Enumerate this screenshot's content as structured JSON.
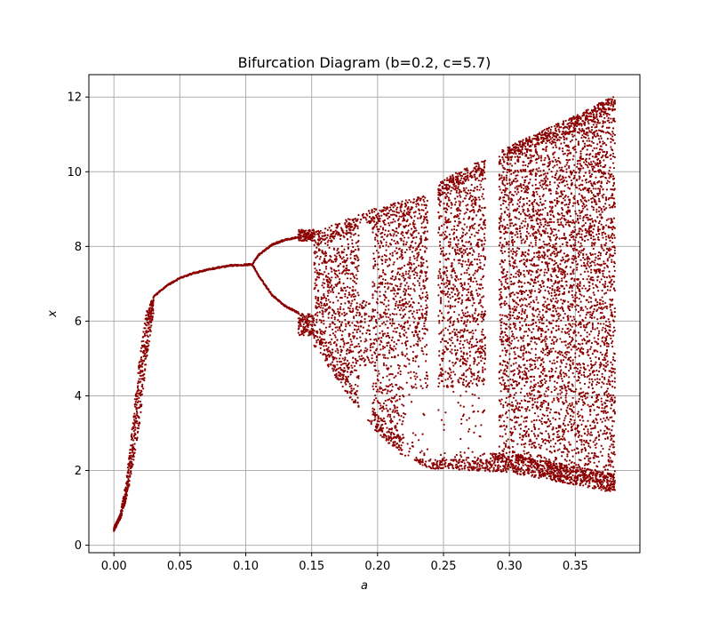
{
  "chart_data": {
    "type": "scatter",
    "title": "Bifurcation Diagram (b=0.2, c=5.7)",
    "xlabel": "a",
    "ylabel": "x",
    "xlim": [
      -0.019,
      0.399
    ],
    "ylim": [
      -0.2,
      12.6
    ],
    "xticks": [
      0.0,
      0.05,
      0.1,
      0.15,
      0.2,
      0.25,
      0.3,
      0.35
    ],
    "xtick_labels": [
      "0.00",
      "0.05",
      "0.10",
      "0.15",
      "0.20",
      "0.25",
      "0.30",
      "0.35"
    ],
    "yticks": [
      0,
      2,
      4,
      6,
      8,
      10,
      12
    ],
    "ytick_labels": [
      "0",
      "2",
      "4",
      "6",
      "8",
      "10",
      "12"
    ],
    "grid": true,
    "marker_color": "#8b0000",
    "a_range": [
      0.0,
      0.38
    ],
    "series": [
      {
        "regime": "band",
        "points": [
          [
            0.0,
            0.38,
            0.48
          ],
          [
            0.005,
            0.7,
            0.85
          ],
          [
            0.01,
            1.3,
            1.9
          ],
          [
            0.015,
            2.2,
            3.6
          ],
          [
            0.02,
            3.4,
            5.2
          ],
          [
            0.025,
            5.0,
            6.3
          ],
          [
            0.03,
            6.2,
            6.65
          ]
        ]
      },
      {
        "regime": "fixed-point",
        "points": [
          [
            0.03,
            6.65
          ],
          [
            0.04,
            6.95
          ],
          [
            0.05,
            7.15
          ],
          [
            0.06,
            7.28
          ],
          [
            0.07,
            7.37
          ],
          [
            0.08,
            7.44
          ],
          [
            0.09,
            7.49
          ],
          [
            0.105,
            7.52
          ]
        ]
      },
      {
        "regime": "period-2",
        "upper": [
          [
            0.105,
            7.52
          ],
          [
            0.11,
            7.78
          ],
          [
            0.12,
            8.05
          ],
          [
            0.13,
            8.18
          ],
          [
            0.14,
            8.25
          ]
        ],
        "lower": [
          [
            0.105,
            7.52
          ],
          [
            0.11,
            7.2
          ],
          [
            0.12,
            6.7
          ],
          [
            0.13,
            6.4
          ],
          [
            0.14,
            6.22
          ]
        ]
      },
      {
        "regime": "chaotic-envelope",
        "upper": [
          [
            0.15,
            8.35
          ],
          [
            0.2,
            9.05
          ],
          [
            0.24,
            9.4
          ],
          [
            0.25,
            9.8
          ],
          [
            0.3,
            10.7
          ],
          [
            0.35,
            11.5
          ],
          [
            0.38,
            12.05
          ]
        ],
        "lower": [
          [
            0.15,
            5.4
          ],
          [
            0.18,
            3.9
          ],
          [
            0.2,
            3.0
          ],
          [
            0.22,
            2.35
          ],
          [
            0.24,
            2.05
          ],
          [
            0.3,
            1.95
          ],
          [
            0.38,
            1.4
          ]
        ]
      }
    ]
  }
}
